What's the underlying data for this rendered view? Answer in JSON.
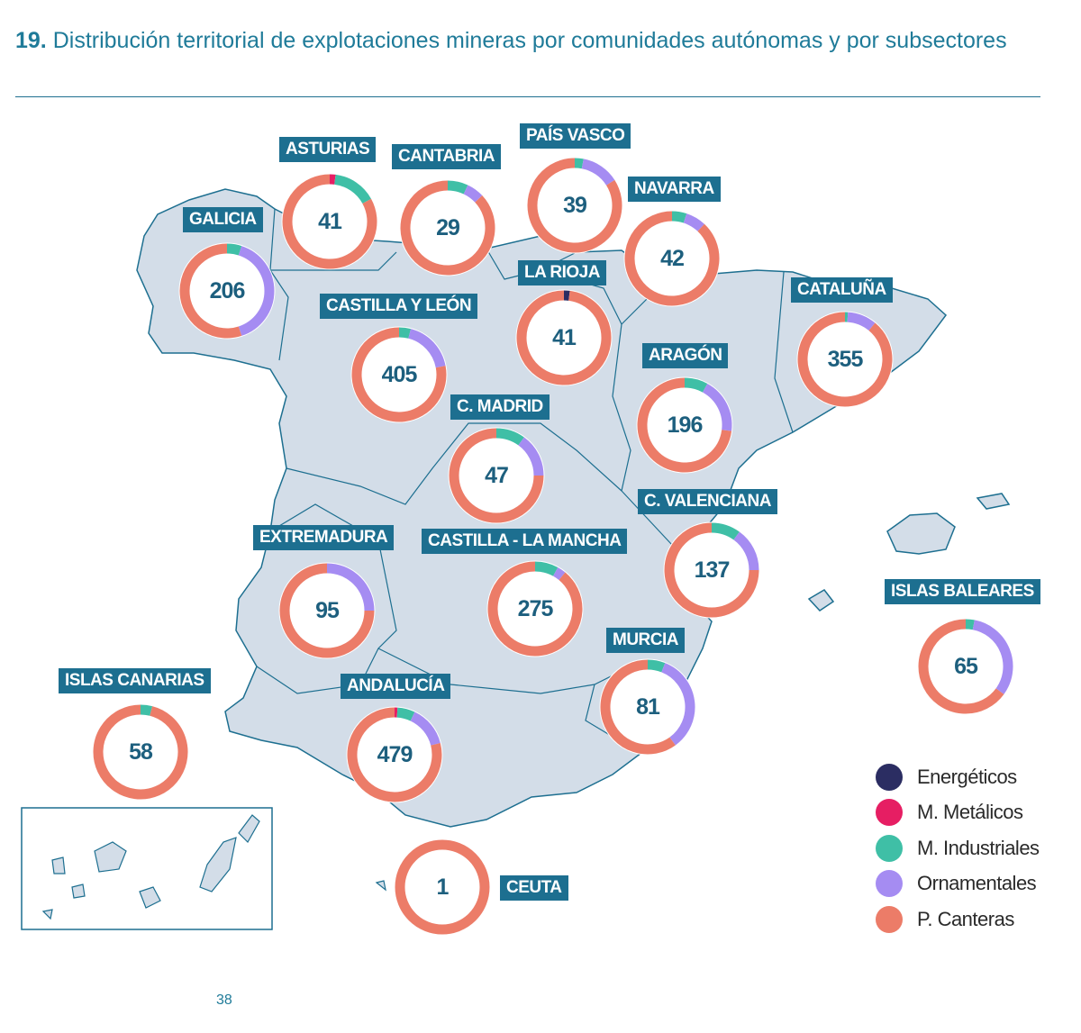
{
  "header": {
    "number": "19.",
    "title": "Distribución territorial de explotaciones mineras por comunidades autónomas y por subsectores"
  },
  "legend": [
    {
      "label": "Energéticos",
      "color": "#2b2d62"
    },
    {
      "label": "M. Metálicos",
      "color": "#e61e63"
    },
    {
      "label": "M. Industriales",
      "color": "#3fbfa6"
    },
    {
      "label": "Ornamentales",
      "color": "#a58cf2"
    },
    {
      "label": "P. Canteras",
      "color": "#ec7c68"
    }
  ],
  "map_colors": {
    "land": "#d3dde8",
    "border": "#1d6f90",
    "label_bg": "#1d6f90"
  },
  "regions": [
    {
      "name": "GALICIA",
      "total": "206",
      "shares_pct": [
        0,
        0,
        5,
        40,
        55
      ]
    },
    {
      "name": "ASTURIAS",
      "total": "41",
      "shares_pct": [
        0,
        2,
        15,
        0,
        83
      ]
    },
    {
      "name": "CANTABRIA",
      "total": "29",
      "shares_pct": [
        0,
        0,
        7,
        6,
        87
      ]
    },
    {
      "name": "PAÍS VASCO",
      "total": "39",
      "shares_pct": [
        0,
        0,
        3,
        13,
        84
      ]
    },
    {
      "name": "NAVARRA",
      "total": "42",
      "shares_pct": [
        0,
        0,
        5,
        7,
        88
      ]
    },
    {
      "name": "LA RIOJA",
      "total": "41",
      "shares_pct": [
        2,
        0,
        0,
        0,
        98
      ]
    },
    {
      "name": "CASTILLA Y LEÓN",
      "total": "405",
      "shares_pct": [
        0,
        0,
        4,
        18,
        78
      ]
    },
    {
      "name": "CATALUÑA",
      "total": "355",
      "shares_pct": [
        0,
        0,
        1,
        10,
        89
      ]
    },
    {
      "name": "ARAGÓN",
      "total": "196",
      "shares_pct": [
        0,
        0,
        8,
        19,
        73
      ]
    },
    {
      "name": "C. MADRID",
      "total": "47",
      "shares_pct": [
        0,
        0,
        10,
        15,
        75
      ]
    },
    {
      "name": "C. VALENCIANA",
      "total": "137",
      "shares_pct": [
        0,
        0,
        10,
        15,
        75
      ]
    },
    {
      "name": "EXTREMADURA",
      "total": "95",
      "shares_pct": [
        0,
        0,
        0,
        25,
        75
      ]
    },
    {
      "name": "CASTILLA - LA MANCHA",
      "total": "275",
      "shares_pct": [
        0,
        0,
        8,
        3,
        89
      ]
    },
    {
      "name": "MURCIA",
      "total": "81",
      "shares_pct": [
        0,
        0,
        6,
        34,
        60
      ]
    },
    {
      "name": "ANDALUCÍA",
      "total": "479",
      "shares_pct": [
        0,
        1,
        6,
        14,
        79
      ]
    },
    {
      "name": "ISLAS BALEARES",
      "total": "65",
      "shares_pct": [
        0,
        0,
        3,
        32,
        65
      ]
    },
    {
      "name": "ISLAS CANARIAS",
      "total": "58",
      "shares_pct": [
        0,
        0,
        4,
        0,
        96
      ]
    },
    {
      "name": "CEUTA",
      "total": "1",
      "shares_pct": [
        0,
        0,
        0,
        0,
        100
      ]
    }
  ],
  "page_number": "38"
}
